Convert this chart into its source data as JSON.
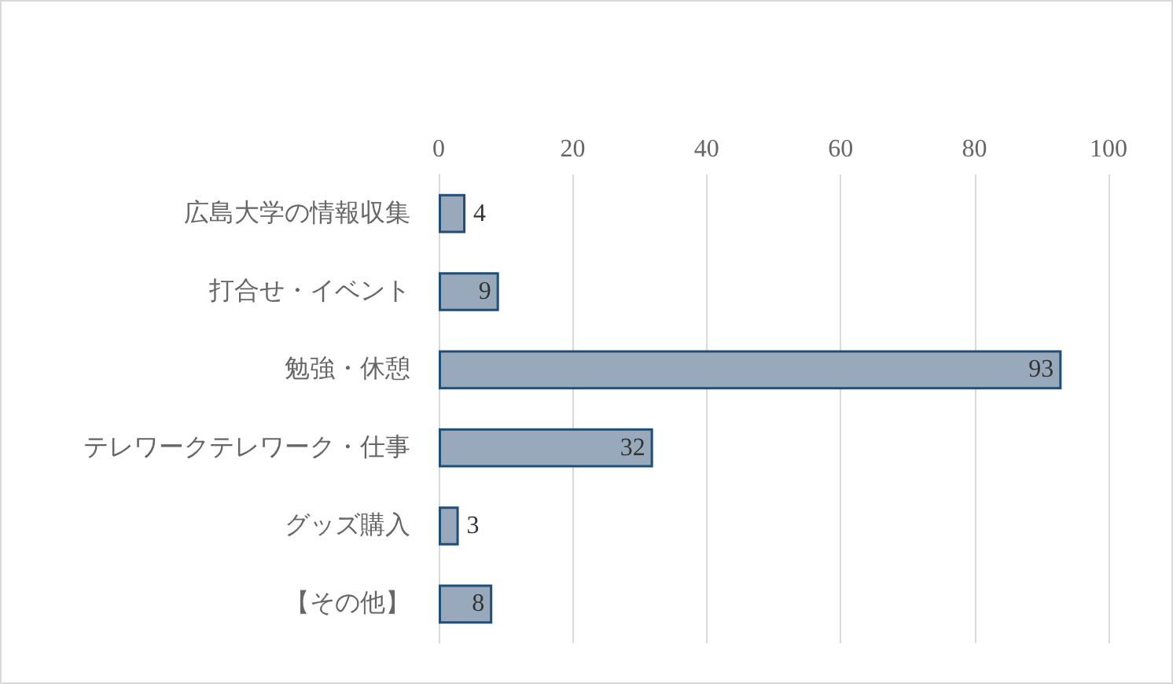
{
  "chart_data": {
    "type": "bar",
    "orientation": "horizontal",
    "categories": [
      "広島大学の情報収集",
      "打合せ・イベント",
      "勉強・休憩",
      "テレワークテレワーク・仕事",
      "グッズ購入",
      "【その他】"
    ],
    "values": [
      4,
      9,
      93,
      32,
      3,
      8
    ],
    "color": "#97a9bb",
    "xlim": [
      0,
      100
    ],
    "xticks": [
      0,
      20,
      40,
      60,
      80,
      100
    ],
    "grid": "x",
    "data_labels": true
  }
}
